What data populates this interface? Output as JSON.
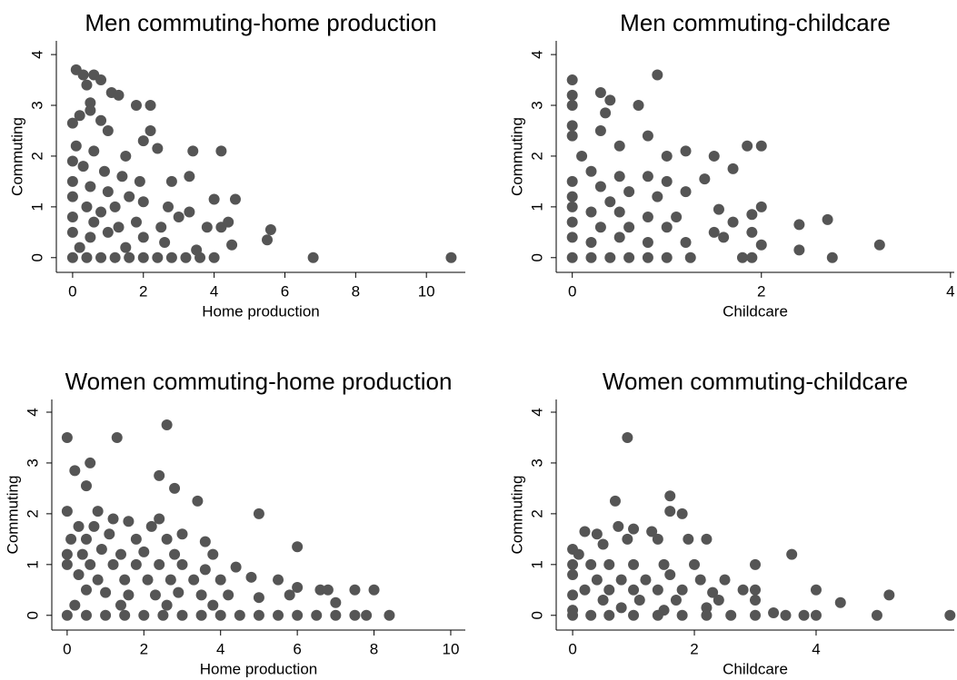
{
  "chart_data": [
    {
      "type": "scatter",
      "title": "Men commuting-home production",
      "x_label": "Home production",
      "y_label": "Commuting",
      "color": "#555555",
      "xlim": [
        -0.46,
        11.1
      ],
      "ylim": [
        -0.29,
        4.27
      ],
      "xticks": [
        0,
        2,
        4,
        6,
        8,
        10
      ],
      "yticks": [
        0,
        1,
        2,
        3,
        4
      ],
      "x": [
        0.1,
        0.3,
        0.6,
        0.8,
        0.4,
        1.1,
        1.3,
        0.5,
        1.8,
        2.2,
        0,
        0.2,
        0.5,
        0.8,
        1.0,
        2.2,
        0.1,
        0.6,
        1.5,
        2.0,
        2.4,
        3.4,
        4.2,
        0,
        0.3,
        0.9,
        1.4,
        1.9,
        2.8,
        3.3,
        0,
        0.5,
        1.0,
        1.6,
        0,
        0.4,
        0.8,
        1.2,
        2.0,
        2.7,
        3.0,
        4.0,
        4.6,
        0,
        0.6,
        1.3,
        1.8,
        2.5,
        3.3,
        4.2,
        4.4,
        0,
        0.5,
        1.0,
        2.0,
        2.6,
        3.8,
        4.5,
        5.5,
        5.6,
        0,
        0.4,
        0.8,
        1.2,
        1.6,
        2.0,
        2.4,
        2.8,
        3.2,
        3.6,
        4.0,
        6.8,
        10.7,
        0.2,
        1.5,
        3.5
      ],
      "values": [
        3.7,
        3.6,
        3.6,
        3.5,
        3.4,
        3.25,
        3.2,
        3.05,
        3,
        3,
        2.65,
        2.8,
        2.9,
        2.7,
        2.5,
        2.5,
        2.2,
        2.1,
        2.0,
        2.3,
        2.15,
        2.1,
        2.1,
        1.9,
        1.8,
        1.7,
        1.6,
        1.5,
        1.5,
        1.6,
        1.5,
        1.4,
        1.3,
        1.2,
        1.2,
        1.0,
        0.9,
        1.0,
        1.1,
        1.0,
        0.8,
        1.15,
        1.15,
        0.8,
        0.7,
        0.6,
        0.7,
        0.6,
        0.9,
        0.6,
        0.7,
        0.5,
        0.4,
        0.5,
        0.4,
        0.3,
        0.6,
        0.25,
        0.35,
        0.55,
        0,
        0,
        0,
        0,
        0,
        0,
        0,
        0,
        0,
        0,
        0,
        0,
        0,
        0.2,
        0.2,
        0.15
      ]
    },
    {
      "type": "scatter",
      "title": "Men commuting-childcare",
      "x_label": "Childcare",
      "y_label": "Commuting",
      "color": "#555555",
      "xlim": [
        -0.17,
        4.04
      ],
      "ylim": [
        -0.29,
        4.27
      ],
      "xticks": [
        0,
        2,
        4
      ],
      "yticks": [
        0,
        1,
        2,
        3,
        4
      ],
      "x": [
        0,
        0,
        0,
        0,
        0,
        0.9,
        0.3,
        0.4,
        0.35,
        0.7,
        0.3,
        0.5,
        0.8,
        0.1,
        1.0,
        1.2,
        1.85,
        2.0,
        1.5,
        1.7,
        0.2,
        0.5,
        0.8,
        1.0,
        1.4,
        0,
        0.3,
        0.6,
        1.2,
        0,
        0.4,
        0.9,
        2.0,
        1.55,
        1.9,
        0,
        0.2,
        0.5,
        0.8,
        1.1,
        1.7,
        2.4,
        2.7,
        0,
        0.3,
        0.6,
        1.0,
        1.5,
        1.9,
        0,
        0.2,
        0.5,
        0.8,
        1.2,
        1.6,
        2.0,
        2.4,
        3.25,
        0,
        0.2,
        0.4,
        0.6,
        0.8,
        1.0,
        1.25,
        1.8,
        1.9,
        2.75
      ],
      "values": [
        3.5,
        3.2,
        3.0,
        2.6,
        2.4,
        3.6,
        3.25,
        3.1,
        2.85,
        3.0,
        2.5,
        2.2,
        2.4,
        2.0,
        2.0,
        2.1,
        2.2,
        2.2,
        2.0,
        1.75,
        1.7,
        1.6,
        1.6,
        1.5,
        1.55,
        1.5,
        1.4,
        1.3,
        1.3,
        1.2,
        1.1,
        1.2,
        1.0,
        0.95,
        0.85,
        1.0,
        0.9,
        0.9,
        0.8,
        0.8,
        0.7,
        0.65,
        0.75,
        0.7,
        0.6,
        0.6,
        0.6,
        0.5,
        0.5,
        0.4,
        0.3,
        0.4,
        0.3,
        0.3,
        0.4,
        0.25,
        0.15,
        0.25,
        0,
        0,
        0,
        0,
        0,
        0,
        0,
        0,
        0,
        0
      ]
    },
    {
      "type": "scatter",
      "title": "Women commuting-home production",
      "x_label": "Home production",
      "y_label": "Commuting",
      "color": "#555555",
      "xlim": [
        -0.4,
        10.38
      ],
      "ylim": [
        -0.29,
        4.25
      ],
      "xticks": [
        0,
        2,
        4,
        6,
        8,
        10
      ],
      "yticks": [
        0,
        1,
        2,
        3,
        4
      ],
      "x": [
        0,
        1.3,
        2.6,
        0.2,
        0.6,
        0.5,
        2.4,
        2.8,
        3.4,
        0,
        0.8,
        1.2,
        2.4,
        5.0,
        0.3,
        0.7,
        1.6,
        2.2,
        3.0,
        0.1,
        0.5,
        1.1,
        1.8,
        2.6,
        3.6,
        0,
        0.4,
        0.9,
        1.4,
        2.0,
        2.8,
        3.8,
        6.0,
        0,
        0.6,
        1.2,
        1.8,
        2.4,
        3.0,
        3.6,
        4.4,
        0.3,
        0.8,
        1.5,
        2.1,
        2.7,
        3.3,
        4.0,
        4.8,
        5.5,
        6.0,
        6.6,
        0.5,
        1.0,
        1.6,
        2.3,
        2.9,
        3.5,
        4.2,
        5.0,
        5.8,
        6.8,
        7.0,
        7.5,
        8.0,
        0.2,
        1.4,
        2.6,
        3.8,
        0,
        0.5,
        1.0,
        1.5,
        2.0,
        2.5,
        3.0,
        3.5,
        4.0,
        4.5,
        5.0,
        5.5,
        6.0,
        6.5,
        7.0,
        7.5,
        7.8,
        8.4
      ],
      "values": [
        3.5,
        3.5,
        3.75,
        2.85,
        3.0,
        2.55,
        2.75,
        2.5,
        2.25,
        2.05,
        2.05,
        1.9,
        1.9,
        2.0,
        1.75,
        1.75,
        1.85,
        1.75,
        1.6,
        1.5,
        1.5,
        1.6,
        1.5,
        1.5,
        1.45,
        1.2,
        1.2,
        1.3,
        1.2,
        1.25,
        1.2,
        1.2,
        1.35,
        1.0,
        1.0,
        1.0,
        1.0,
        1.0,
        1.0,
        0.9,
        0.95,
        0.8,
        0.7,
        0.7,
        0.7,
        0.7,
        0.7,
        0.7,
        0.75,
        0.7,
        0.55,
        0.5,
        0.5,
        0.45,
        0.4,
        0.4,
        0.45,
        0.4,
        0.4,
        0.35,
        0.4,
        0.5,
        0.25,
        0.5,
        0.5,
        0.2,
        0.2,
        0.2,
        0.2,
        0,
        0,
        0,
        0,
        0,
        0,
        0,
        0,
        0,
        0,
        0,
        0,
        0,
        0,
        0,
        0,
        0,
        0
      ]
    },
    {
      "type": "scatter",
      "title": "Women commuting-childcare",
      "x_label": "Childcare",
      "y_label": "Commuting",
      "color": "#555555",
      "xlim": [
        -0.27,
        6.27
      ],
      "ylim": [
        -0.29,
        4.25
      ],
      "xticks": [
        0,
        2,
        4
      ],
      "yticks": [
        0,
        1,
        2,
        3,
        4
      ],
      "x": [
        0.9,
        1.6,
        0.7,
        1.6,
        1.8,
        0.2,
        0.4,
        0.75,
        1.0,
        1.3,
        0,
        0.1,
        0.5,
        0.9,
        1.4,
        1.9,
        2.2,
        0,
        0.3,
        0.6,
        1.0,
        1.5,
        2.0,
        3.6,
        3.0,
        0,
        0.4,
        0.8,
        1.2,
        1.6,
        2.1,
        2.5,
        0.2,
        0.6,
        1.0,
        1.4,
        1.8,
        2.3,
        2.8,
        3.0,
        4.0,
        0,
        0.5,
        1.1,
        1.7,
        2.4,
        3.0,
        4.4,
        5.2,
        0,
        0.8,
        1.5,
        2.2,
        0,
        0.3,
        0.6,
        1.0,
        1.4,
        1.8,
        2.2,
        2.6,
        3.0,
        3.3,
        3.5,
        3.8,
        4.0,
        5.0,
        6.2
      ],
      "values": [
        3.5,
        2.35,
        2.25,
        2.05,
        2.0,
        1.65,
        1.6,
        1.75,
        1.7,
        1.65,
        1.3,
        1.2,
        1.4,
        1.5,
        1.5,
        1.5,
        1.5,
        1.0,
        1.0,
        1.0,
        1.0,
        1.0,
        1.0,
        1.2,
        1.0,
        0.8,
        0.7,
        0.7,
        0.7,
        0.8,
        0.7,
        0.7,
        0.5,
        0.5,
        0.5,
        0.5,
        0.5,
        0.45,
        0.5,
        0.5,
        0.5,
        0.4,
        0.3,
        0.3,
        0.3,
        0.3,
        0.3,
        0.25,
        0.4,
        0.1,
        0.15,
        0.1,
        0.15,
        0,
        0,
        0,
        0,
        0,
        0,
        0,
        0,
        0,
        0.05,
        0,
        0,
        0,
        0,
        0
      ]
    }
  ]
}
